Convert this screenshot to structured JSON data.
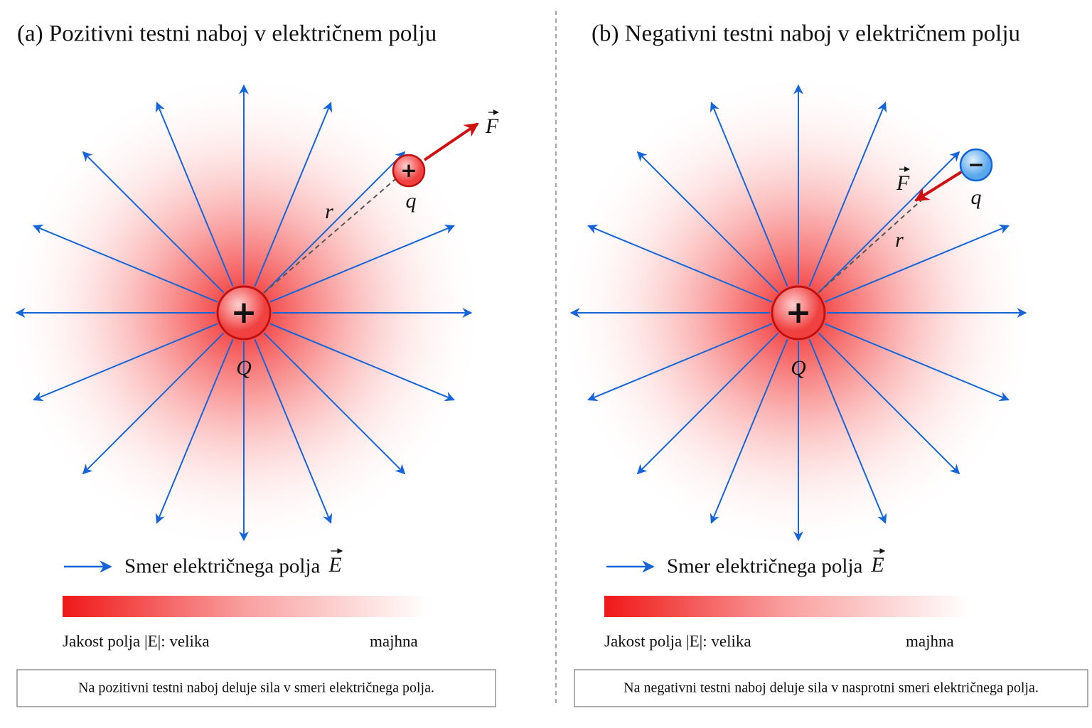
{
  "panels": [
    {
      "title": "(a) Pozitivni testni naboj v električnem polju",
      "source_charge": {
        "sign": "+",
        "label": "Q"
      },
      "test_charge": {
        "sign": "+",
        "label": "q"
      },
      "distance_label": "r",
      "force_label": "F",
      "legend": {
        "text": "Smer električnega polja",
        "symbol": "E"
      },
      "strength": {
        "text": "Jakost polja |E|: velika",
        "low": "majhna"
      },
      "caption": "Na pozitivni testni naboj deluje sila v smeri električnega polja."
    },
    {
      "title": "(b) Negativni testni naboj v električnem polju",
      "source_charge": {
        "sign": "+",
        "label": "Q"
      },
      "test_charge": {
        "sign": "−",
        "label": "q"
      },
      "distance_label": "r",
      "force_label": "F",
      "legend": {
        "text": "Smer električnega polja",
        "symbol": "E"
      },
      "strength": {
        "text": "Jakost polja |E|: velika",
        "low": "majhna"
      },
      "caption": "Na negativni testni naboj deluje sila v nasprotni smeri električnega polja."
    }
  ]
}
